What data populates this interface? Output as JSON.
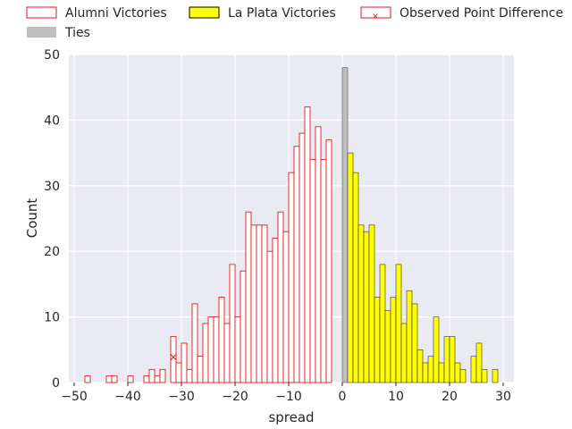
{
  "chart_data": {
    "type": "bar",
    "title": "",
    "xlabel": "spread",
    "ylabel": "Count",
    "xlim": [
      -51,
      32
    ],
    "ylim": [
      0,
      50
    ],
    "xticks": [
      -50,
      -40,
      -30,
      -20,
      -10,
      0,
      10,
      20,
      30
    ],
    "yticks": [
      0,
      10,
      20,
      30,
      40,
      50
    ],
    "grid": true,
    "legend_placement": "top",
    "bin_width": 1,
    "series": [
      {
        "name": "Alumni Victories",
        "style": "outline",
        "color": "#e31a1c",
        "x": [
          -48,
          -47,
          -46,
          -45,
          -44,
          -43,
          -42,
          -41,
          -40,
          -39,
          -38,
          -37,
          -36,
          -35,
          -34,
          -33,
          -32,
          -31,
          -30,
          -29,
          -28,
          -27,
          -26,
          -25,
          -24,
          -23,
          -22,
          -21,
          -20,
          -19,
          -18,
          -17,
          -16,
          -15,
          -14,
          -13,
          -12,
          -11,
          -10,
          -9,
          -8,
          -7,
          -6,
          -5,
          -4,
          -3,
          -2,
          -1
        ],
        "values": [
          1,
          0,
          0,
          0,
          1,
          1,
          0,
          0,
          1,
          0,
          0,
          1,
          2,
          1,
          2,
          0,
          7,
          3,
          6,
          2,
          12,
          4,
          9,
          10,
          10,
          13,
          9,
          18,
          10,
          17,
          26,
          24,
          24,
          24,
          20,
          22,
          26,
          23,
          32,
          36,
          38,
          42,
          34,
          39,
          34,
          37,
          0,
          0
        ]
      },
      {
        "name": "La Plata Victories",
        "style": "filled",
        "color": "#ffff00",
        "x": [
          1,
          2,
          3,
          4,
          5,
          6,
          7,
          8,
          9,
          10,
          11,
          12,
          13,
          14,
          15,
          16,
          17,
          18,
          19,
          20,
          21,
          22,
          23,
          24,
          25,
          26,
          27,
          28
        ],
        "values": [
          35,
          32,
          24,
          23,
          24,
          13,
          18,
          11,
          13,
          18,
          9,
          14,
          12,
          5,
          3,
          4,
          10,
          3,
          7,
          7,
          3,
          2,
          0,
          4,
          6,
          2,
          0,
          2
        ]
      },
      {
        "name": "Ties",
        "style": "filled",
        "color": "#bfbfbf",
        "x": [
          0
        ],
        "values": [
          48
        ]
      }
    ],
    "markers": [
      {
        "name": "Observed Point Difference",
        "symbol": "x",
        "color": "#e31a1c",
        "x": -31.5,
        "y": 3.9
      }
    ]
  }
}
